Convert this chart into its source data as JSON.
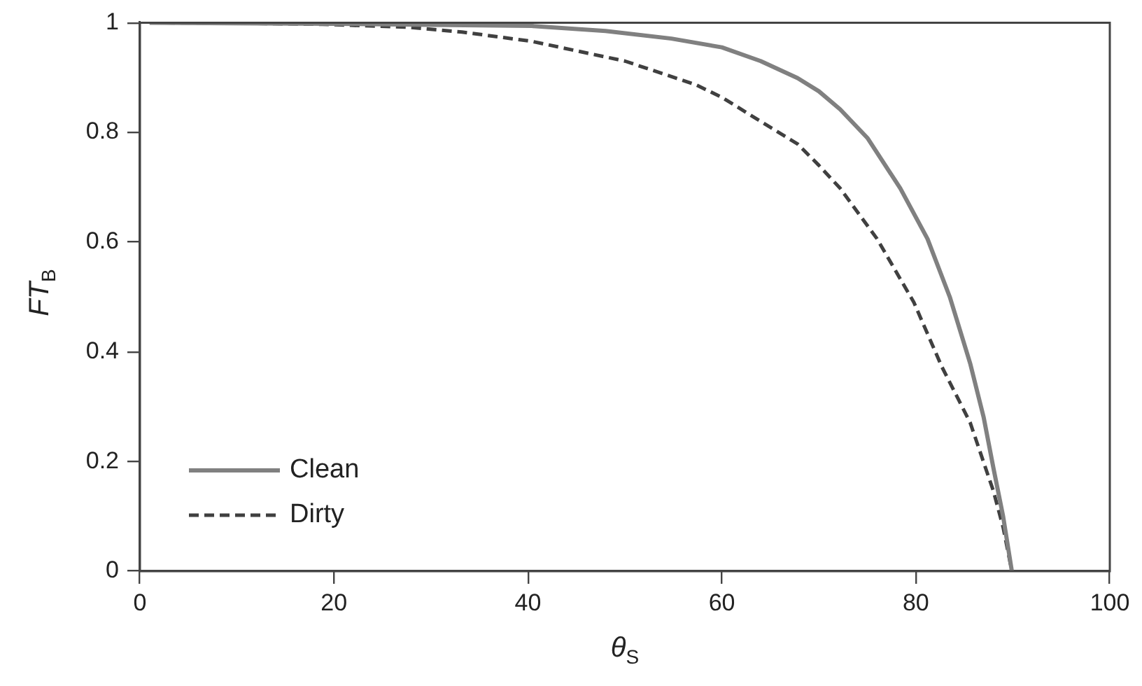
{
  "chart_data": {
    "type": "line",
    "xlabel": "θ$_{S}$",
    "ylabel": "FT$_{B}$",
    "xlim": [
      0,
      100
    ],
    "xticks": [
      0,
      20,
      40,
      60,
      80,
      100
    ],
    "ylim": [
      0,
      1
    ],
    "yticks": [
      0,
      {
        "value": 0.2,
        "label": "0.2"
      },
      {
        "value": 0.4,
        "label": "0.4"
      },
      {
        "value": 0.6,
        "label": "0.6"
      },
      {
        "value": 0.8,
        "label": "0.8"
      },
      1
    ],
    "grid": false,
    "legend": "bottom left",
    "marker": "none",
    "series": [
      {
        "name": "Clean",
        "color": "#808080",
        "line_style": "solid",
        "x": [
          1,
          10,
          20,
          30,
          40.4,
          48,
          54.8,
          60,
          64,
          67.8,
          70,
          72.2,
          75,
          78.4,
          81.2,
          83.5,
          85.6,
          87,
          88,
          89,
          89.9
        ],
        "values": [
          1,
          0.999,
          0.998,
          0.996,
          0.994,
          0.985,
          0.971,
          0.955,
          0.93,
          0.899,
          0.875,
          0.842,
          0.79,
          0.698,
          0.606,
          0.5,
          0.379,
          0.28,
          0.188,
          0.1,
          0
        ]
      },
      {
        "name": "Dirty",
        "color": "#404040",
        "line_style": "dashed",
        "x": [
          1,
          10,
          18.8,
          27.4,
          33.2,
          40.4,
          46,
          50,
          57.3,
          60,
          64,
          67.8,
          70,
          72.2,
          76,
          79.8,
          82.7,
          85.6,
          88,
          89,
          89.9
        ],
        "values": [
          1,
          0.999,
          0.997,
          0.992,
          0.983,
          0.966,
          0.945,
          0.93,
          0.887,
          0.864,
          0.82,
          0.779,
          0.74,
          0.698,
          0.606,
          0.49,
          0.372,
          0.271,
          0.146,
          0.08,
          0
        ]
      }
    ]
  }
}
